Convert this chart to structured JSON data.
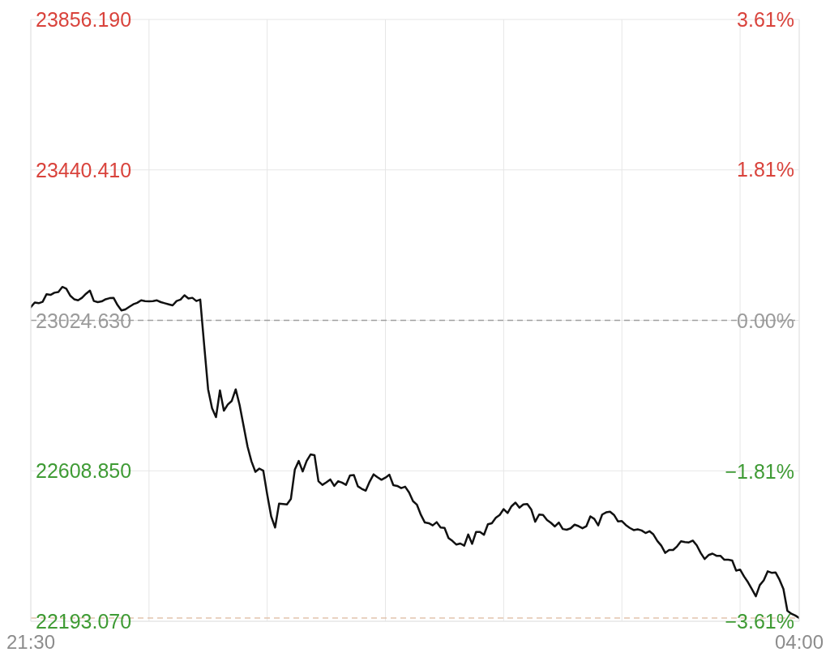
{
  "chart_data": {
    "type": "line",
    "color": "#111111",
    "marker": "none",
    "line_style": "solid",
    "grid": true,
    "categories": [
      "21:30",
      null,
      null,
      null,
      null,
      null,
      null,
      null,
      null,
      null,
      null,
      null,
      null,
      null,
      null,
      null,
      null,
      null,
      null,
      null,
      null,
      null,
      null,
      null,
      null,
      null,
      null,
      null,
      null,
      null,
      null,
      null,
      null,
      null,
      null,
      null,
      null,
      null,
      null,
      null,
      null,
      null,
      null,
      null,
      null,
      null,
      null,
      null,
      null,
      null,
      null,
      null,
      null,
      null,
      null,
      null,
      null,
      null,
      null,
      null,
      null,
      null,
      null,
      null,
      null,
      null,
      null,
      null,
      null,
      null,
      null,
      null,
      null,
      null,
      null,
      null,
      null,
      null,
      null,
      null,
      null,
      null,
      null,
      null,
      null,
      null,
      null,
      null,
      null,
      null,
      null,
      null,
      null,
      null,
      null,
      null,
      null,
      null,
      null,
      null,
      null,
      null,
      null,
      null,
      null,
      null,
      null,
      null,
      null,
      null,
      null,
      null,
      null,
      null,
      null,
      null,
      null,
      null,
      null,
      null,
      null,
      null,
      null,
      null,
      null,
      null,
      null,
      null,
      null,
      null,
      null,
      null,
      null,
      null,
      null,
      null,
      null,
      null,
      null,
      null,
      null,
      null,
      null,
      null,
      null,
      null,
      null,
      null,
      null,
      null,
      null,
      null,
      null,
      null,
      null,
      null,
      null,
      null,
      null,
      null,
      null,
      null,
      null,
      null,
      null,
      null,
      null,
      null,
      null,
      null,
      null,
      null,
      null,
      null,
      null,
      null,
      null,
      null,
      null,
      null,
      null,
      null,
      null,
      null,
      null,
      null,
      null,
      null,
      null,
      null,
      null,
      null,
      null,
      null,
      null,
      "04:00"
    ],
    "values": [
      23061,
      23074,
      23072,
      23076,
      23097,
      23095,
      23101,
      23103,
      23117,
      23112,
      23093,
      23083,
      23080,
      23087,
      23098,
      23107,
      23078,
      23075,
      23077,
      23083,
      23086,
      23087,
      23067,
      23052,
      23055,
      23062,
      23069,
      23073,
      23080,
      23078,
      23077,
      23078,
      23080,
      23075,
      23072,
      23069,
      23066,
      23078,
      23082,
      23094,
      23085,
      23087,
      23078,
      23082,
      22956,
      22834,
      22782,
      22757,
      22831,
      22775,
      22792,
      22802,
      22834,
      22790,
      22733,
      22676,
      22635,
      22606,
      22615,
      22609,
      22543,
      22483,
      22452,
      22518,
      22517,
      22516,
      22531,
      22612,
      22636,
      22607,
      22636,
      22654,
      22652,
      22580,
      22570,
      22577,
      22585,
      22567,
      22580,
      22576,
      22570,
      22596,
      22597,
      22566,
      22559,
      22554,
      22579,
      22599,
      22591,
      22584,
      22590,
      22598,
      22569,
      22567,
      22561,
      22565,
      22549,
      22525,
      22515,
      22487,
      22466,
      22464,
      22458,
      22467,
      22452,
      22451,
      22423,
      22415,
      22405,
      22408,
      22402,
      22433,
      22407,
      22440,
      22440,
      22432,
      22461,
      22464,
      22479,
      22487,
      22503,
      22492,
      22511,
      22521,
      22507,
      22516,
      22517,
      22502,
      22468,
      22488,
      22487,
      22473,
      22465,
      22455,
      22466,
      22448,
      22446,
      22450,
      22460,
      22456,
      22450,
      22456,
      22483,
      22476,
      22458,
      22488,
      22494,
      22496,
      22487,
      22469,
      22470,
      22459,
      22451,
      22445,
      22447,
      22444,
      22437,
      22442,
      22433,
      22415,
      22402,
      22382,
      22390,
      22390,
      22400,
      22414,
      22412,
      22411,
      22416,
      22403,
      22382,
      22365,
      22376,
      22380,
      22374,
      22374,
      22363,
      22363,
      22361,
      22333,
      22336,
      22317,
      22301,
      22282,
      22262,
      22293,
      22306,
      22331,
      22327,
      22328,
      22308,
      22282,
      22222,
      22214,
      22209,
      22202
    ],
    "ylim": [
      22193.07,
      23856.19
    ],
    "yticks": [
      {
        "value": 23856.19,
        "label": "23856.190"
      },
      {
        "value": 23440.41,
        "label": "23440.410"
      },
      {
        "value": 23024.63,
        "label": "23024.630"
      },
      {
        "value": 22608.85,
        "label": "22608.850"
      },
      {
        "value": 22193.07,
        "label": "22193.070"
      }
    ],
    "y2lim": [
      -3.61,
      3.61
    ],
    "y2ticks": [
      {
        "value": 3.61,
        "label": "3.61%"
      },
      {
        "value": 1.81,
        "label": "1.81%"
      },
      {
        "value": 0,
        "label": "0.00%"
      },
      {
        "value": -1.81,
        "label": "−1.81%"
      },
      {
        "value": -3.61,
        "label": "−3.61%"
      }
    ],
    "ref_lines": [
      {
        "axis": "y",
        "value": 23024.63,
        "color": "#a0a0a0",
        "line_style": "dashed"
      },
      {
        "axis": "y",
        "value": 22202,
        "color": "#e2c4ad",
        "line_style": "dashed"
      }
    ]
  }
}
